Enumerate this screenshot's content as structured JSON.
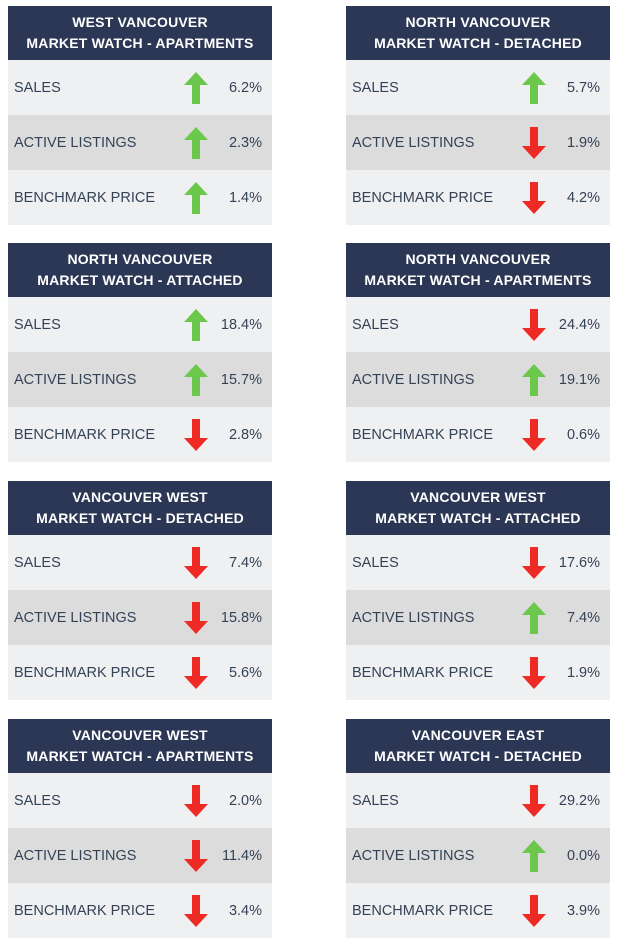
{
  "colors": {
    "header_bg": "#2b3754",
    "up": "#6cc84d",
    "down": "#ee2a24"
  },
  "cards": [
    {
      "line1": "WEST VANCOUVER",
      "line2": "MARKET WATCH - APARTMENTS",
      "rows": [
        {
          "label": "SALES",
          "direction": "up",
          "value": "6.2%"
        },
        {
          "label": "ACTIVE LISTINGS",
          "direction": "up",
          "value": "2.3%"
        },
        {
          "label": "BENCHMARK PRICE",
          "direction": "up",
          "value": "1.4%"
        }
      ]
    },
    {
      "line1": "NORTH VANCOUVER",
      "line2": "MARKET WATCH - DETACHED",
      "rows": [
        {
          "label": "SALES",
          "direction": "up",
          "value": "5.7%"
        },
        {
          "label": "ACTIVE LISTINGS",
          "direction": "down",
          "value": "1.9%"
        },
        {
          "label": "BENCHMARK PRICE",
          "direction": "down",
          "value": "4.2%"
        }
      ]
    },
    {
      "line1": "NORTH VANCOUVER",
      "line2": "MARKET WATCH - ATTACHED",
      "rows": [
        {
          "label": "SALES",
          "direction": "up",
          "value": "18.4%"
        },
        {
          "label": "ACTIVE LISTINGS",
          "direction": "up",
          "value": "15.7%"
        },
        {
          "label": "BENCHMARK PRICE",
          "direction": "down",
          "value": "2.8%"
        }
      ]
    },
    {
      "line1": "NORTH VANCOUVER",
      "line2": "MARKET WATCH - APARTMENTS",
      "rows": [
        {
          "label": "SALES",
          "direction": "down",
          "value": "24.4%"
        },
        {
          "label": "ACTIVE LISTINGS",
          "direction": "up",
          "value": "19.1%"
        },
        {
          "label": "BENCHMARK PRICE",
          "direction": "down",
          "value": "0.6%"
        }
      ]
    },
    {
      "line1": "VANCOUVER WEST",
      "line2": "MARKET WATCH - DETACHED",
      "rows": [
        {
          "label": "SALES",
          "direction": "down",
          "value": "7.4%"
        },
        {
          "label": "ACTIVE LISTINGS",
          "direction": "down",
          "value": "15.8%"
        },
        {
          "label": "BENCHMARK PRICE",
          "direction": "down",
          "value": "5.6%"
        }
      ]
    },
    {
      "line1": "VANCOUVER WEST",
      "line2": "MARKET WATCH - ATTACHED",
      "rows": [
        {
          "label": "SALES",
          "direction": "down",
          "value": "17.6%"
        },
        {
          "label": "ACTIVE LISTINGS",
          "direction": "up",
          "value": "7.4%"
        },
        {
          "label": "BENCHMARK PRICE",
          "direction": "down",
          "value": "1.9%"
        }
      ]
    },
    {
      "line1": "VANCOUVER WEST",
      "line2": "MARKET WATCH - APARTMENTS",
      "rows": [
        {
          "label": "SALES",
          "direction": "down",
          "value": "2.0%"
        },
        {
          "label": "ACTIVE LISTINGS",
          "direction": "down",
          "value": "11.4%"
        },
        {
          "label": "BENCHMARK PRICE",
          "direction": "down",
          "value": "3.4%"
        }
      ]
    },
    {
      "line1": "VANCOUVER EAST",
      "line2": "MARKET WATCH - DETACHED",
      "rows": [
        {
          "label": "SALES",
          "direction": "down",
          "value": "29.2%"
        },
        {
          "label": "ACTIVE LISTINGS",
          "direction": "up",
          "value": "0.0%"
        },
        {
          "label": "BENCHMARK PRICE",
          "direction": "down",
          "value": "3.9%"
        }
      ]
    }
  ]
}
